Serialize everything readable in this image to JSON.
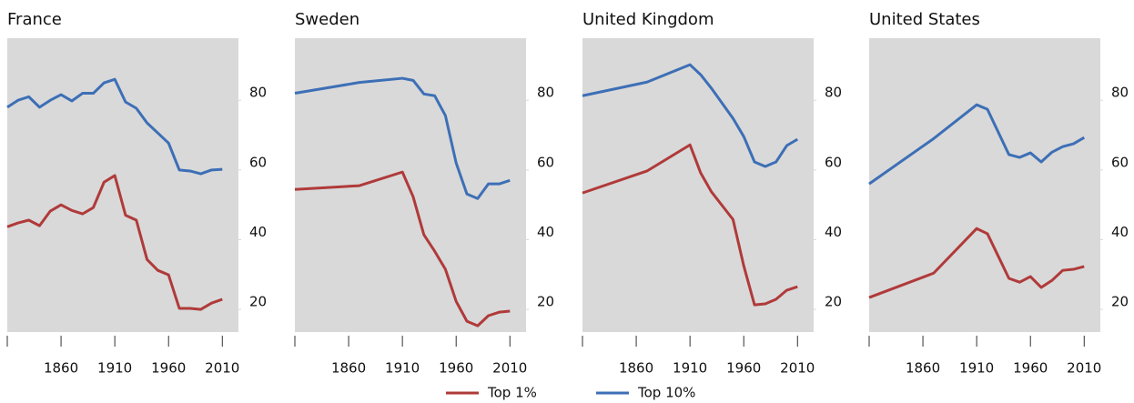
{
  "chart_data": [
    {
      "type": "line",
      "title": "France",
      "x": [
        1810,
        1820,
        1830,
        1840,
        1850,
        1860,
        1870,
        1880,
        1890,
        1900,
        1910,
        1920,
        1930,
        1940,
        1950,
        1960,
        1970,
        1980,
        1990,
        2000,
        2010
      ],
      "series": [
        {
          "name": "Top 1%",
          "color": "#b03a3a",
          "values": [
            43.7,
            44.8,
            45.6,
            44,
            48.2,
            50,
            48.4,
            47.4,
            49.2,
            56.5,
            58.4,
            47,
            45.6,
            34.3,
            31.2,
            29.9,
            20.3,
            20.3,
            20,
            21.8,
            22.9
          ]
        },
        {
          "name": "Top 10%",
          "color": "#3d6fb6",
          "values": [
            78,
            80,
            81,
            78,
            80,
            81.6,
            79.8,
            82,
            82,
            85,
            86,
            79.5,
            77.7,
            73.5,
            70.6,
            67.7,
            60,
            59.7,
            58.9,
            60,
            60.2
          ]
        }
      ],
      "xlim": [
        1810,
        2025
      ],
      "ylim": [
        13.5,
        97.8
      ],
      "xticks": [
        1860,
        1910,
        1960,
        2010
      ],
      "yticks": [
        20,
        40,
        60,
        80
      ]
    },
    {
      "type": "line",
      "title": "Sweden",
      "x": [
        1810,
        1870,
        1910,
        1920,
        1930,
        1940,
        1950,
        1960,
        1970,
        1980,
        1990,
        2000,
        2010
      ],
      "series": [
        {
          "name": "Top 1%",
          "color": "#b03a3a",
          "values": [
            54.4,
            55.5,
            59.4,
            52.3,
            41.4,
            36.7,
            31.5,
            22.3,
            16.6,
            15.3,
            18.2,
            19.2,
            19.5
          ]
        },
        {
          "name": "Top 10%",
          "color": "#3d6fb6",
          "values": [
            82,
            85.1,
            86.3,
            85.7,
            81.8,
            81.3,
            75.6,
            62,
            53.1,
            51.8,
            56,
            56,
            57
          ]
        }
      ],
      "xlim": [
        1810,
        2025
      ],
      "ylim": [
        13.5,
        97.8
      ],
      "xticks": [
        1860,
        1910,
        1960,
        2010
      ],
      "yticks": [
        20,
        40,
        60,
        80
      ]
    },
    {
      "type": "line",
      "title": "United Kingdom",
      "x": [
        1810,
        1870,
        1910,
        1920,
        1930,
        1950,
        1960,
        1970,
        1980,
        1990,
        2000,
        2010
      ],
      "series": [
        {
          "name": "Top 1%",
          "color": "#b03a3a",
          "values": [
            53.4,
            59.7,
            67.2,
            59.1,
            53.7,
            45.8,
            32.5,
            21.3,
            21.6,
            22.9,
            25.5,
            26.5
          ]
        },
        {
          "name": "Top 10%",
          "color": "#3d6fb6",
          "values": [
            81.3,
            85.2,
            90.2,
            87.3,
            83.4,
            74.8,
            69.6,
            62.3,
            61,
            62.3,
            67,
            68.8
          ]
        }
      ],
      "xlim": [
        1810,
        2025
      ],
      "ylim": [
        13.5,
        97.8
      ],
      "xticks": [
        1860,
        1910,
        1960,
        2010
      ],
      "yticks": [
        20,
        40,
        60,
        80
      ]
    },
    {
      "type": "line",
      "title": "United States",
      "x": [
        1810,
        1870,
        1910,
        1920,
        1940,
        1950,
        1960,
        1970,
        1980,
        1990,
        2000,
        2010
      ],
      "series": [
        {
          "name": "Top 1%",
          "color": "#b03a3a",
          "values": [
            23.4,
            30.4,
            43.2,
            41.7,
            28.9,
            27.8,
            29.4,
            26.3,
            28.3,
            31.2,
            31.5,
            32.3
          ]
        },
        {
          "name": "Top 10%",
          "color": "#3d6fb6",
          "values": [
            56,
            69,
            78.7,
            77.4,
            64.4,
            63.6,
            64.9,
            62.3,
            65.1,
            66.7,
            67.5,
            69.3
          ]
        }
      ],
      "xlim": [
        1810,
        2025
      ],
      "ylim": [
        13.5,
        97.8
      ],
      "xticks": [
        1860,
        1910,
        1960,
        2010
      ],
      "yticks": [
        20,
        40,
        60,
        80
      ]
    }
  ]
}
